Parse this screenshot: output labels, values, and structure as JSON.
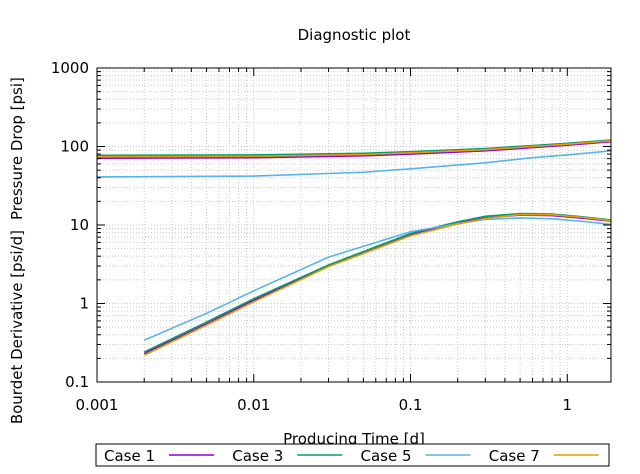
{
  "chart_data": {
    "type": "line",
    "title": "Diagnostic plot",
    "xlabel": "Producing Time [d]",
    "ylabel_left": "Bourdet Derivative [psi/d]",
    "ylabel_right": "Pressure Drop [psi]",
    "xscale": "log",
    "yscale": "log",
    "xlim": [
      0.001,
      1.9
    ],
    "ylim": [
      0.1,
      1000
    ],
    "x_ticks": [
      {
        "value": 0.001,
        "label": "0.001"
      },
      {
        "value": 0.01,
        "label": "0.01"
      },
      {
        "value": 0.1,
        "label": "0.1"
      },
      {
        "value": 1,
        "label": "1"
      }
    ],
    "y_ticks": [
      {
        "value": 0.1,
        "label": "0.1"
      },
      {
        "value": 1,
        "label": "1"
      },
      {
        "value": 10,
        "label": "10"
      },
      {
        "value": 100,
        "label": "100"
      },
      {
        "value": 1000,
        "label": "1000"
      }
    ],
    "grid": true,
    "legend_position": "bottom",
    "series": [
      {
        "name": "Case 1",
        "color": "#9400d3",
        "pressure": {
          "x": [
            0.001,
            0.01,
            0.05,
            0.1,
            0.3,
            0.6,
            1.0,
            1.9
          ],
          "y": [
            71,
            72,
            76,
            80,
            88,
            97,
            104,
            115
          ]
        },
        "derivative": {
          "x": [
            0.002,
            0.005,
            0.01,
            0.03,
            0.1,
            0.2,
            0.3,
            0.5,
            0.8,
            1.2,
            1.9
          ],
          "y": [
            0.23,
            0.55,
            1.1,
            3.0,
            7.5,
            10.5,
            12.3,
            13.4,
            13.2,
            12.3,
            11.2
          ]
        }
      },
      {
        "name": "Case 3",
        "color": "#009e73",
        "pressure": {
          "x": [
            0.001,
            0.01,
            0.05,
            0.1,
            0.3,
            0.6,
            1.0,
            1.9
          ],
          "y": [
            77,
            78,
            82,
            86,
            94,
            103,
            110,
            121
          ]
        },
        "derivative": {
          "x": [
            0.002,
            0.005,
            0.01,
            0.03,
            0.1,
            0.2,
            0.3,
            0.5,
            0.8,
            1.2,
            1.9
          ],
          "y": [
            0.24,
            0.58,
            1.15,
            3.1,
            7.8,
            11.0,
            12.9,
            14.0,
            13.8,
            12.8,
            11.6
          ]
        }
      },
      {
        "name": "Case 5",
        "color": "#56b4e9",
        "pressure": {
          "x": [
            0.001,
            0.01,
            0.05,
            0.1,
            0.3,
            0.6,
            1.0,
            1.9
          ],
          "y": [
            41,
            42,
            47,
            52,
            62,
            72,
            78,
            88
          ]
        },
        "derivative": {
          "x": [
            0.002,
            0.005,
            0.01,
            0.03,
            0.1,
            0.2,
            0.3,
            0.5,
            0.8,
            1.2,
            1.9
          ],
          "y": [
            0.34,
            0.75,
            1.45,
            3.9,
            8.2,
            10.4,
            11.8,
            12.3,
            12.0,
            11.2,
            10.2
          ]
        }
      },
      {
        "name": "Case 7",
        "color": "#e69f00",
        "pressure": {
          "x": [
            0.001,
            0.01,
            0.05,
            0.1,
            0.3,
            0.6,
            1.0,
            1.9
          ],
          "y": [
            74,
            75,
            79,
            83,
            91,
            100,
            107,
            118
          ]
        },
        "derivative": {
          "x": [
            0.002,
            0.005,
            0.01,
            0.03,
            0.1,
            0.2,
            0.3,
            0.5,
            0.8,
            1.2,
            1.9
          ],
          "y": [
            0.22,
            0.53,
            1.05,
            2.95,
            7.3,
            10.3,
            12.1,
            13.6,
            13.5,
            12.6,
            11.4
          ]
        }
      }
    ]
  }
}
